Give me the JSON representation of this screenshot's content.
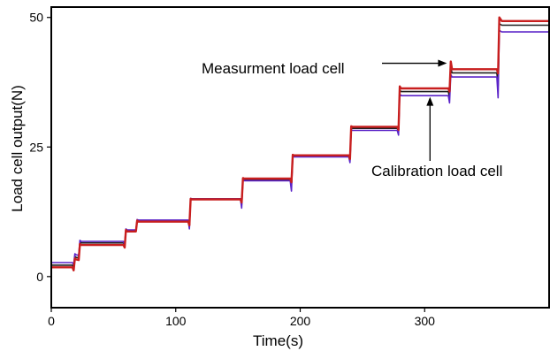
{
  "chart_data": {
    "type": "line",
    "title": "",
    "xlabel": "Time(s)",
    "ylabel": "Load cell output(N)",
    "xlim": [
      0,
      400
    ],
    "ylim": [
      -6,
      52
    ],
    "xticks": [
      0,
      100,
      200,
      300
    ],
    "yticks": [
      0,
      25,
      50
    ],
    "grid": false,
    "series": [
      {
        "color": "#c81e1e",
        "points": [
          [
            0,
            1.8
          ],
          [
            17,
            1.8
          ],
          [
            18,
            1.2
          ],
          [
            19,
            3.5
          ],
          [
            20,
            3.3
          ],
          [
            22,
            3.2
          ],
          [
            23,
            6.3
          ],
          [
            24,
            6.1
          ],
          [
            58,
            6.1
          ],
          [
            59,
            5.6
          ],
          [
            60,
            9.0
          ],
          [
            61,
            8.7
          ],
          [
            68,
            8.7
          ],
          [
            69,
            10.8
          ],
          [
            70,
            10.6
          ],
          [
            110,
            10.6
          ],
          [
            111,
            9.9
          ],
          [
            112,
            15.0
          ],
          [
            113,
            14.9
          ],
          [
            152,
            14.9
          ],
          [
            153,
            14.3
          ],
          [
            154,
            19.0
          ],
          [
            155,
            18.9
          ],
          [
            192,
            18.9
          ],
          [
            193,
            18.2
          ],
          [
            194,
            23.5
          ],
          [
            195,
            23.4
          ],
          [
            239,
            23.4
          ],
          [
            240,
            22.7
          ],
          [
            241,
            29.0
          ],
          [
            242,
            28.9
          ],
          [
            278,
            28.9
          ],
          [
            279,
            28.3
          ],
          [
            280,
            36.7
          ],
          [
            281,
            36.3
          ],
          [
            319,
            36.3
          ],
          [
            320,
            35.7
          ],
          [
            321,
            41.5
          ],
          [
            322,
            40.0
          ],
          [
            358,
            40.0
          ],
          [
            359,
            39.2
          ],
          [
            360,
            50.0
          ],
          [
            362,
            49.3
          ],
          [
            400,
            49.3
          ]
        ]
      },
      {
        "color": "#5a23c8",
        "points": [
          [
            0,
            2.7
          ],
          [
            17,
            2.7
          ],
          [
            18,
            2.3
          ],
          [
            19,
            4.4
          ],
          [
            20,
            4.2
          ],
          [
            22,
            4.1
          ],
          [
            23,
            7.0
          ],
          [
            24,
            6.8
          ],
          [
            58,
            6.8
          ],
          [
            59,
            6.1
          ],
          [
            60,
            9.2
          ],
          [
            61,
            9.0
          ],
          [
            68,
            9.0
          ],
          [
            69,
            11.0
          ],
          [
            70,
            10.9
          ],
          [
            110,
            10.9
          ],
          [
            111,
            9.2
          ],
          [
            112,
            15.1
          ],
          [
            113,
            15.0
          ],
          [
            152,
            15.0
          ],
          [
            153,
            13.2
          ],
          [
            154,
            18.8
          ],
          [
            155,
            18.5
          ],
          [
            192,
            18.5
          ],
          [
            193,
            16.5
          ],
          [
            194,
            23.2
          ],
          [
            195,
            23.1
          ],
          [
            239,
            23.1
          ],
          [
            240,
            22.0
          ],
          [
            241,
            28.3
          ],
          [
            242,
            28.2
          ],
          [
            278,
            28.2
          ],
          [
            279,
            27.3
          ],
          [
            280,
            35.3
          ],
          [
            281,
            34.9
          ],
          [
            319,
            34.9
          ],
          [
            320,
            33.5
          ],
          [
            321,
            39.0
          ],
          [
            322,
            38.5
          ],
          [
            358,
            38.5
          ],
          [
            359,
            34.5
          ],
          [
            360,
            47.5
          ],
          [
            362,
            47.2
          ],
          [
            400,
            47.2
          ]
        ]
      },
      {
        "color": "#1f1f1f",
        "points": [
          [
            0,
            2.2
          ],
          [
            17,
            2.2
          ],
          [
            18,
            1.7
          ],
          [
            19,
            3.9
          ],
          [
            20,
            3.7
          ],
          [
            22,
            3.6
          ],
          [
            23,
            6.7
          ],
          [
            24,
            6.5
          ],
          [
            58,
            6.5
          ],
          [
            59,
            5.9
          ],
          [
            60,
            9.1
          ],
          [
            61,
            8.9
          ],
          [
            68,
            8.9
          ],
          [
            69,
            10.9
          ],
          [
            70,
            10.8
          ],
          [
            110,
            10.8
          ],
          [
            111,
            9.6
          ],
          [
            112,
            15.0
          ],
          [
            113,
            15.0
          ],
          [
            152,
            15.0
          ],
          [
            153,
            13.8
          ],
          [
            154,
            18.9
          ],
          [
            155,
            18.7
          ],
          [
            192,
            18.7
          ],
          [
            193,
            17.4
          ],
          [
            194,
            23.4
          ],
          [
            195,
            23.3
          ],
          [
            239,
            23.3
          ],
          [
            240,
            22.4
          ],
          [
            241,
            28.8
          ],
          [
            242,
            28.6
          ],
          [
            278,
            28.6
          ],
          [
            279,
            27.8
          ],
          [
            280,
            36.0
          ],
          [
            281,
            35.7
          ],
          [
            319,
            35.7
          ],
          [
            320,
            34.6
          ],
          [
            321,
            40.3
          ],
          [
            322,
            39.3
          ],
          [
            358,
            39.3
          ],
          [
            359,
            36.8
          ],
          [
            360,
            48.8
          ],
          [
            362,
            48.5
          ],
          [
            400,
            48.5
          ]
        ]
      }
    ],
    "annotations": [
      {
        "text": "Measurment load cell",
        "target": [
          320,
          41.5
        ]
      },
      {
        "text": "Calibration load cell",
        "target": [
          305,
          35.0
        ]
      }
    ]
  }
}
